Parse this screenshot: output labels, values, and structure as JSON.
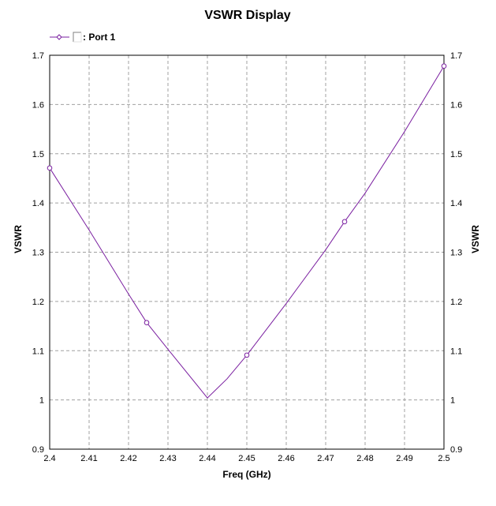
{
  "chart_data": {
    "type": "line",
    "title": "VSWR Display",
    "xlabel": "Freq (GHz)",
    "ylabel": "VSWR",
    "ylabel_right": "VSWR",
    "xlim": [
      2.4,
      2.5
    ],
    "ylim": [
      0.9,
      1.7
    ],
    "grid": true,
    "legend_placement": "top-left",
    "x_ticks": [
      "2.4",
      "2.41",
      "2.42",
      "2.43",
      "2.44",
      "2.45",
      "2.46",
      "2.47",
      "2.48",
      "2.49",
      "2.5"
    ],
    "y_ticks": [
      "0.9",
      "1",
      "1.1",
      "1.2",
      "1.3",
      "1.4",
      "1.5",
      "1.6",
      "1.7"
    ],
    "series": [
      {
        "name": ": Port 1",
        "color": "#7a1fa0",
        "x": [
          2.4,
          2.41,
          2.42,
          2.4246,
          2.43,
          2.44,
          2.445,
          2.45,
          2.46,
          2.47,
          2.4748,
          2.48,
          2.49,
          2.5
        ],
        "y": [
          1.471,
          1.345,
          1.215,
          1.157,
          1.103,
          1.004,
          1.043,
          1.091,
          1.196,
          1.305,
          1.362,
          1.42,
          1.545,
          1.678
        ],
        "markers_x": [
          2.4,
          2.4246,
          2.45,
          2.4748,
          2.5
        ],
        "markers_y": [
          1.471,
          1.157,
          1.091,
          1.362,
          1.678
        ]
      }
    ]
  }
}
